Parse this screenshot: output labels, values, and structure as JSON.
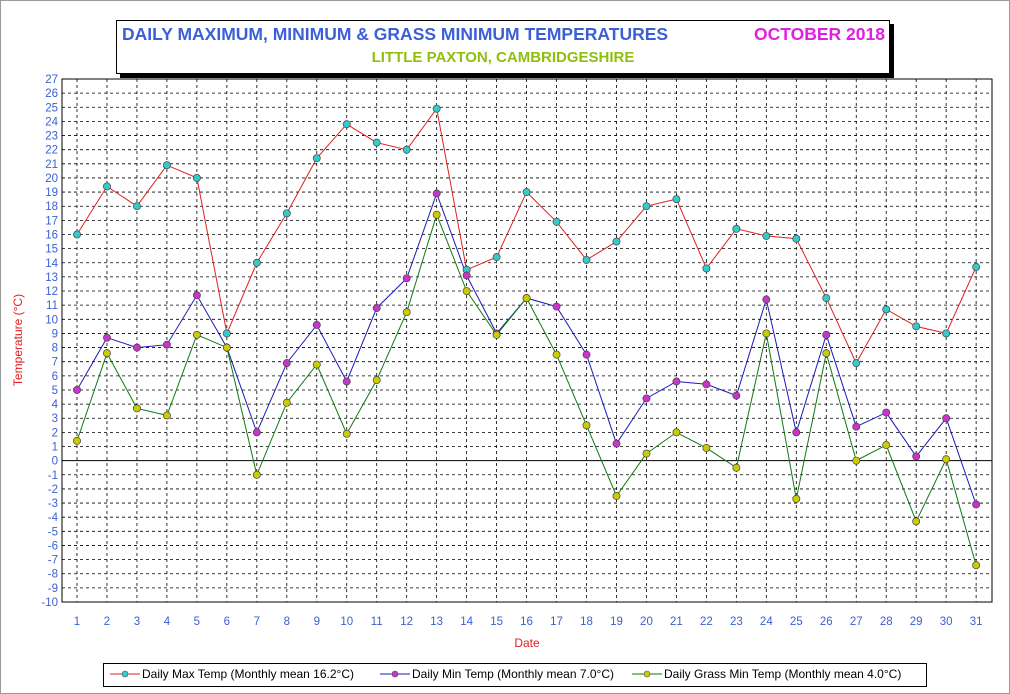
{
  "title": "DAILY MAXIMUM, MINIMUM & GRASS MINIMUM TEMPERATURES",
  "month": "OCTOBER 2018",
  "subtitle": "LITTLE PAXTON, CAMBRIDGESHIRE",
  "colors": {
    "title": "#3b5fd6",
    "month": "#e21ee2",
    "subtitle": "#8fbf0c",
    "max_line": "#e02020",
    "max_marker": "#33cccc",
    "min_line": "#1a1ab8",
    "min_marker": "#cc33cc",
    "grass_line": "#0f7a0f",
    "grass_marker": "#cccc00",
    "axis_label": "#e02020",
    "tick_label": "#3b5fd6"
  },
  "legend": [
    "Daily Max Temp (Monthly mean 16.2°C)",
    "Daily Min Temp (Monthly mean 7.0°C)",
    "Daily Grass Min Temp (Monthly mean 4.0°C)"
  ],
  "chart_data": {
    "type": "line",
    "xlabel": "Date",
    "ylabel": "Temperature (°C)",
    "ylim": [
      -10,
      27
    ],
    "grid": "dashed",
    "legend_position": "bottom",
    "x": [
      1,
      2,
      3,
      4,
      5,
      6,
      7,
      8,
      9,
      10,
      11,
      12,
      13,
      14,
      15,
      16,
      17,
      18,
      19,
      20,
      21,
      22,
      23,
      24,
      25,
      26,
      27,
      28,
      29,
      30,
      31
    ],
    "yticks": [
      27,
      26,
      25,
      24,
      23,
      22,
      21,
      20,
      19,
      18,
      17,
      16,
      15,
      14,
      13,
      12,
      11,
      10,
      9,
      8,
      7,
      6,
      5,
      4,
      3,
      2,
      1,
      0,
      -1,
      -2,
      -3,
      -4,
      -5,
      -6,
      -7,
      -8,
      -9,
      -10
    ],
    "series": [
      {
        "name": "Daily Max Temp (Monthly mean 16.2°C)",
        "values": [
          16.0,
          19.4,
          18.0,
          20.9,
          20.0,
          9.0,
          14.0,
          17.5,
          21.4,
          23.8,
          22.5,
          22.0,
          24.9,
          13.5,
          14.4,
          19.0,
          16.9,
          14.2,
          15.5,
          18.0,
          18.5,
          13.6,
          16.4,
          15.9,
          15.7,
          11.5,
          6.9,
          10.7,
          9.5,
          9.0,
          13.7
        ]
      },
      {
        "name": "Daily Min Temp (Monthly mean 7.0°C)",
        "values": [
          5.0,
          8.7,
          8.0,
          8.2,
          11.7,
          8.0,
          2.0,
          6.9,
          9.6,
          5.6,
          10.8,
          12.9,
          18.9,
          13.1,
          9.0,
          11.5,
          10.9,
          7.5,
          1.2,
          4.4,
          5.6,
          5.4,
          4.6,
          11.4,
          2.0,
          8.9,
          2.4,
          3.4,
          0.3,
          3.0,
          -3.1
        ]
      },
      {
        "name": "Daily Grass Min Temp (Monthly mean 4.0°C)",
        "values": [
          1.4,
          7.6,
          3.7,
          3.2,
          8.9,
          8.0,
          -1.0,
          4.1,
          6.8,
          1.9,
          5.7,
          10.5,
          17.4,
          12.0,
          8.9,
          11.5,
          7.5,
          2.5,
          -2.5,
          0.5,
          2.0,
          0.9,
          -0.5,
          9.0,
          -2.7,
          7.6,
          0.0,
          1.1,
          -4.3,
          0.1,
          -7.4
        ]
      }
    ]
  }
}
